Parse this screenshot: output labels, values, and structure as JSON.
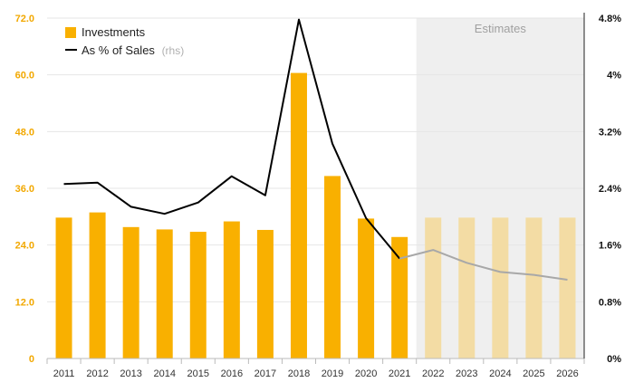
{
  "chart_data": {
    "type": "bar",
    "categories": [
      "2011",
      "2012",
      "2013",
      "2014",
      "2015",
      "2016",
      "2017",
      "2018",
      "2019",
      "2020",
      "2021",
      "2022",
      "2023",
      "2024",
      "2025",
      "2026"
    ],
    "series": [
      {
        "name": "Investments",
        "axis": "left",
        "type": "bar",
        "color": "#f9b000",
        "estimate_color": "#f3dca4",
        "values": [
          29.8,
          30.9,
          27.8,
          27.3,
          26.8,
          29.0,
          27.2,
          60.4,
          38.6,
          29.6,
          25.7,
          29.8,
          29.8,
          29.8,
          29.8,
          29.8
        ]
      },
      {
        "name": "As % of Sales",
        "name_suffix": "(rhs)",
        "axis": "right",
        "type": "line",
        "unit": "%",
        "color": "#000000",
        "estimate_color": "#a8a8a8",
        "values": [
          2.46,
          2.48,
          2.14,
          2.04,
          2.2,
          2.57,
          2.3,
          4.78,
          3.03,
          1.98,
          1.41,
          1.53,
          1.35,
          1.22,
          1.18,
          1.11
        ]
      }
    ],
    "estimates": {
      "label": "Estimates",
      "start_category": "2022",
      "end_category": "2026",
      "shade_color": "#efefef"
    },
    "y_left": {
      "ticks": [
        "0",
        "12.0",
        "24.0",
        "36.0",
        "48.0",
        "60.0",
        "72.0"
      ],
      "ylim": [
        0,
        72
      ]
    },
    "y_right": {
      "ticks": [
        "0%",
        "0.8%",
        "1.6%",
        "2.4%",
        "3.2%",
        "4%",
        "4.8%"
      ],
      "ylim": [
        0,
        4.8
      ]
    },
    "legend_position": "top-left",
    "grid": true
  }
}
